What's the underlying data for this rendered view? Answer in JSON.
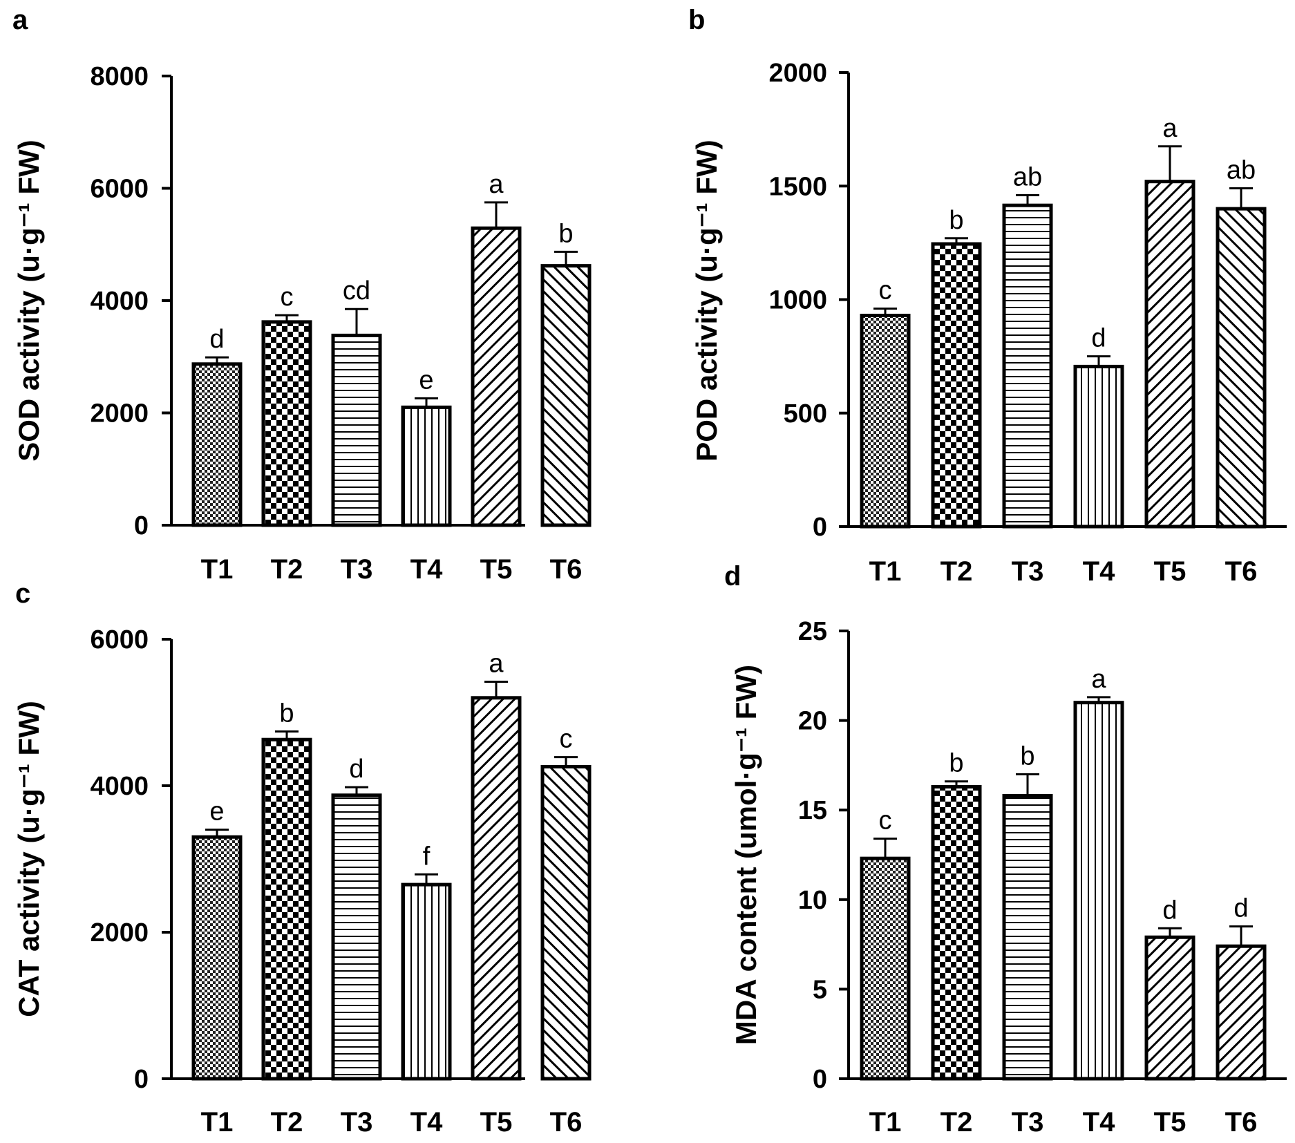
{
  "figure": {
    "panel_letters": [
      "a",
      "b",
      "c",
      "d"
    ]
  },
  "chart_data": [
    {
      "type": "bar",
      "panel": "a",
      "title": "",
      "xlabel": "",
      "ylabel": "SOD activity (u·g⁻¹ FW)",
      "categories": [
        "T1",
        "T2",
        "T3",
        "T4",
        "T5",
        "T6"
      ],
      "values": [
        2870,
        3620,
        3380,
        2100,
        5290,
        4620
      ],
      "errors": [
        120,
        120,
        470,
        160,
        460,
        250
      ],
      "significance": [
        "d",
        "c",
        "cd",
        "e",
        "a",
        "b"
      ],
      "patterns": [
        "dense-check",
        "check",
        "horizontal",
        "vertical",
        "diag-up",
        "diag-down"
      ],
      "ylim": [
        0,
        8000
      ],
      "yticks": [
        0,
        2000,
        4000,
        6000,
        8000
      ],
      "grid": false
    },
    {
      "type": "bar",
      "panel": "b",
      "title": "",
      "xlabel": "",
      "ylabel": "POD activity (u·g⁻¹ FW)",
      "categories": [
        "T1",
        "T2",
        "T3",
        "T4",
        "T5",
        "T6"
      ],
      "values": [
        930,
        1245,
        1415,
        705,
        1520,
        1400
      ],
      "errors": [
        30,
        25,
        45,
        45,
        155,
        90
      ],
      "significance": [
        "c",
        "b",
        "ab",
        "d",
        "a",
        "ab"
      ],
      "patterns": [
        "dense-check",
        "check",
        "horizontal",
        "vertical",
        "diag-up",
        "diag-down"
      ],
      "ylim": [
        0,
        2000
      ],
      "yticks": [
        0,
        500,
        1000,
        1500,
        2000
      ],
      "grid": false
    },
    {
      "type": "bar",
      "panel": "c",
      "title": "",
      "xlabel": "",
      "ylabel": "CAT activity (u·g⁻¹ FW)",
      "categories": [
        "T1",
        "T2",
        "T3",
        "T4",
        "T5",
        "T6"
      ],
      "values": [
        3300,
        4630,
        3870,
        2650,
        5200,
        4260
      ],
      "errors": [
        100,
        110,
        110,
        140,
        220,
        130
      ],
      "significance": [
        "e",
        "b",
        "d",
        "f",
        "a",
        "c"
      ],
      "patterns": [
        "dense-check",
        "check",
        "horizontal",
        "vertical",
        "diag-up",
        "diag-down"
      ],
      "ylim": [
        0,
        6000
      ],
      "yticks": [
        0,
        2000,
        4000,
        6000
      ],
      "grid": false
    },
    {
      "type": "bar",
      "panel": "d",
      "title": "",
      "xlabel": "",
      "ylabel": "MDA content (umol·g⁻¹ FW)",
      "categories": [
        "T1",
        "T2",
        "T3",
        "T4",
        "T5",
        "T6"
      ],
      "values": [
        12.3,
        16.3,
        15.8,
        21.0,
        7.9,
        7.4
      ],
      "errors": [
        1.1,
        0.3,
        1.2,
        0.3,
        0.5,
        1.1
      ],
      "significance": [
        "c",
        "b",
        "b",
        "a",
        "d",
        "d"
      ],
      "patterns": [
        "dense-check",
        "check",
        "horizontal",
        "vertical",
        "diag-up",
        "diag-up"
      ],
      "ylim": [
        0,
        25
      ],
      "yticks": [
        0,
        5,
        10,
        15,
        20,
        25
      ],
      "grid": false
    }
  ]
}
